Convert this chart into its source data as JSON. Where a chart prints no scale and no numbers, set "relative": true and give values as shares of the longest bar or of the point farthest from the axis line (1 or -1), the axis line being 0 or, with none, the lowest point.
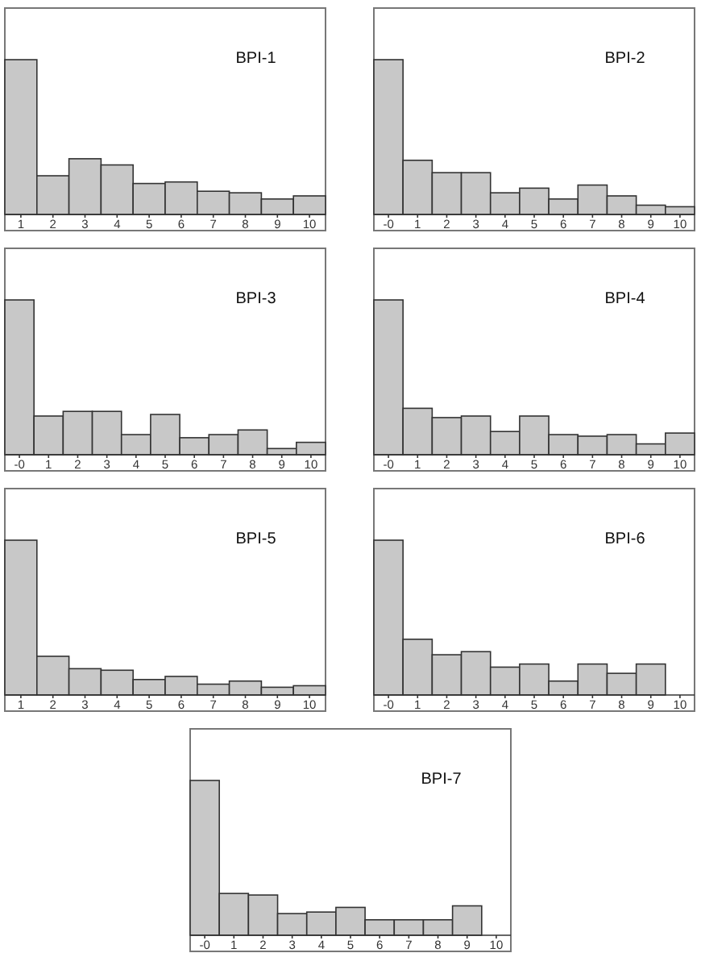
{
  "chart_data": [
    {
      "type": "bar",
      "title": "BPI-1",
      "relative": true,
      "color": "#c8c8c8",
      "categories": [
        "1",
        "2",
        "3",
        "4",
        "5",
        "6",
        "7",
        "8",
        "9",
        "10"
      ],
      "values": [
        1,
        0.25,
        0.36,
        0.32,
        0.2,
        0.21,
        0.15,
        0.14,
        0.1,
        0.12
      ]
    },
    {
      "type": "bar",
      "title": "BPI-2",
      "relative": true,
      "color": "#c8c8c8",
      "categories": [
        "-0",
        "1",
        "2",
        "3",
        "4",
        "5",
        "6",
        "7",
        "8",
        "9",
        "10"
      ],
      "values": [
        1,
        0.35,
        0.27,
        0.27,
        0.14,
        0.17,
        0.1,
        0.19,
        0.12,
        0.06,
        0.05
      ]
    },
    {
      "type": "bar",
      "title": "BPI-3",
      "relative": true,
      "color": "#c8c8c8",
      "categories": [
        "-0",
        "1",
        "2",
        "3",
        "4",
        "5",
        "6",
        "7",
        "8",
        "9",
        "10"
      ],
      "values": [
        1,
        0.25,
        0.28,
        0.28,
        0.13,
        0.26,
        0.11,
        0.13,
        0.16,
        0.04,
        0.08
      ]
    },
    {
      "type": "bar",
      "title": "BPI-4",
      "relative": true,
      "color": "#c8c8c8",
      "categories": [
        "-0",
        "1",
        "2",
        "3",
        "4",
        "5",
        "6",
        "7",
        "8",
        "9",
        "10"
      ],
      "values": [
        1,
        0.3,
        0.24,
        0.25,
        0.15,
        0.25,
        0.13,
        0.12,
        0.13,
        0.07,
        0.14
      ]
    },
    {
      "type": "bar",
      "title": "BPI-5",
      "relative": true,
      "color": "#c8c8c8",
      "categories": [
        "1",
        "2",
        "3",
        "4",
        "5",
        "6",
        "7",
        "8",
        "9",
        "10"
      ],
      "values": [
        1,
        0.25,
        0.17,
        0.16,
        0.1,
        0.12,
        0.07,
        0.09,
        0.05,
        0.06
      ]
    },
    {
      "type": "bar",
      "title": "BPI-6",
      "relative": true,
      "color": "#c8c8c8",
      "categories": [
        "-0",
        "1",
        "2",
        "3",
        "4",
        "5",
        "6",
        "7",
        "8",
        "9",
        "10"
      ],
      "values": [
        1,
        0.36,
        0.26,
        0.28,
        0.18,
        0.2,
        0.09,
        0.2,
        0.14,
        0.2,
        0
      ]
    },
    {
      "type": "bar",
      "title": "BPI-7",
      "relative": true,
      "color": "#c8c8c8",
      "categories": [
        "-0",
        "1",
        "2",
        "3",
        "4",
        "5",
        "6",
        "7",
        "8",
        "9",
        "10"
      ],
      "values": [
        1,
        0.27,
        0.26,
        0.14,
        0.15,
        0.18,
        0.1,
        0.1,
        0.1,
        0.19,
        0
      ]
    }
  ]
}
